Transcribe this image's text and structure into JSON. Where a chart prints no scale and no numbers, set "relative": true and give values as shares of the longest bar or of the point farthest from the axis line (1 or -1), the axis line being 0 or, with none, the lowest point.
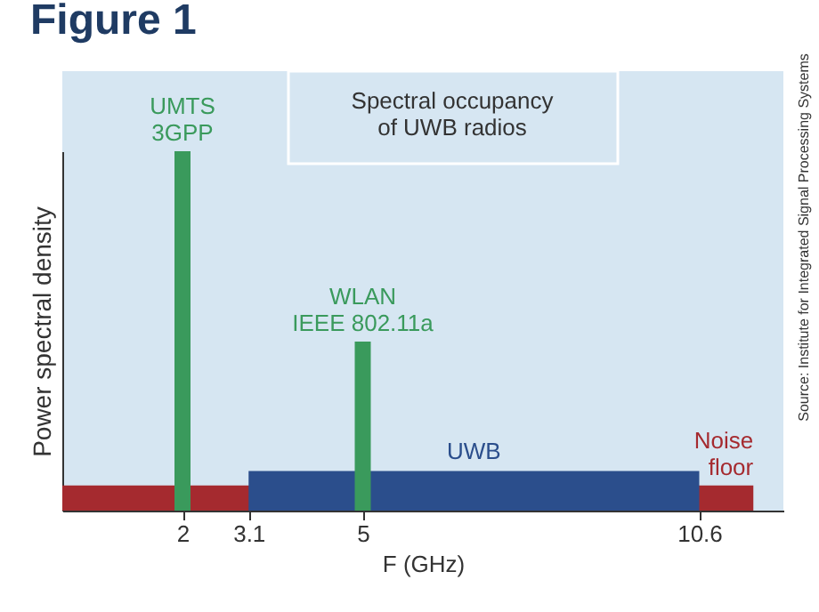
{
  "chart_data": {
    "type": "bar",
    "title": "Figure 1",
    "xlabel": "F (GHz)",
    "ylabel": "Power spectral density",
    "relative": true,
    "xlim": [
      0,
      12
    ],
    "xticks": [
      2,
      3.1,
      5,
      10.6
    ],
    "grid": false,
    "series": [
      {
        "name": "Noise\nfloor",
        "type": "area",
        "color": "#a52a2f",
        "x": [
          0,
          11.5
        ],
        "values": [
          0.07,
          0.07
        ]
      },
      {
        "name": "UWB",
        "type": "area",
        "color": "#2b4e8c",
        "x": [
          3.1,
          10.6
        ],
        "values": [
          0.11,
          0.11
        ]
      },
      {
        "name": "UMTS\n3GPP",
        "color": "#3a9a5c",
        "x": [
          2
        ],
        "values": [
          1
        ]
      },
      {
        "name": "WLAN\nIEEE 802.11a",
        "color": "#3a9a5c",
        "x": [
          5
        ],
        "values": [
          0.47
        ]
      }
    ],
    "annotations": [
      "Spectral occupancy\nof UWB radios",
      "Source: Institute for Integrated Signal Processing Systems"
    ]
  }
}
